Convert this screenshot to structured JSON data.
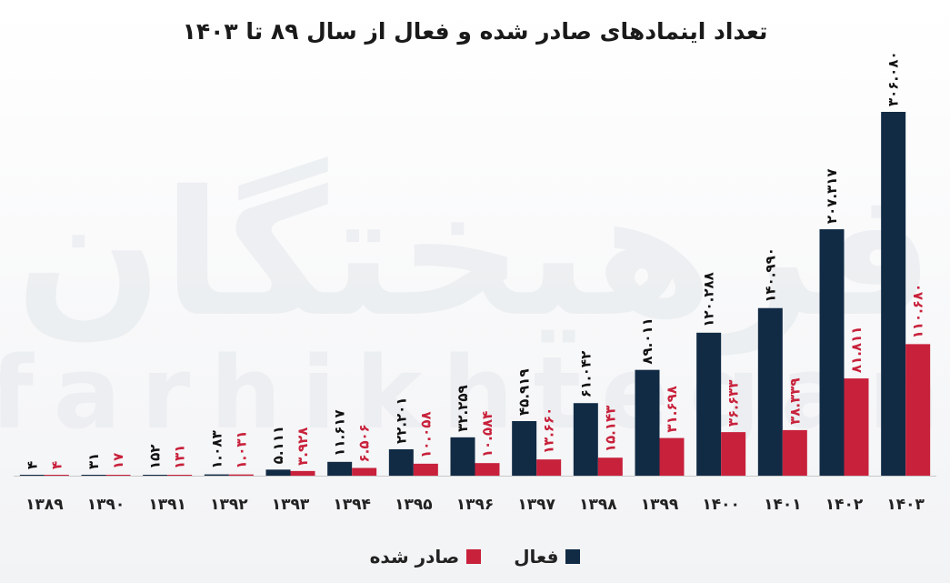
{
  "chart_data": {
    "type": "bar",
    "title": "تعداد اینمادهای صادر شده و فعال از سال ۸۹ تا ۱۴۰۳",
    "categories": [
      "۱۳۸۹",
      "۱۳۹۰",
      "۱۳۹۱",
      "۱۳۹۲",
      "۱۳۹۳",
      "۱۳۹۴",
      "۱۳۹۵",
      "۱۳۹۶",
      "۱۳۹۷",
      "۱۳۹۸",
      "۱۳۹۹",
      "۱۴۰۰",
      "۱۴۰۱",
      "۱۴۰۲",
      "۱۴۰۳"
    ],
    "series": [
      {
        "name": "فعال",
        "color": "#112b45",
        "values": [
          4,
          31,
          152,
          1083,
          5111,
          11617,
          22201,
          32259,
          45919,
          61042,
          89011,
          120288,
          140990,
          207317,
          306080
        ],
        "labels": [
          "۴",
          "۳۱",
          "۱۵۲",
          "۱.۰۸۳",
          "۵.۱۱۱",
          "۱۱.۶۱۷",
          "۲۲.۲۰۱",
          "۳۲.۲۵۹",
          "۴۵.۹۱۹",
          "۶۱.۰۴۲",
          "۸۹.۰۱۱",
          "۱۲۰.۲۸۸",
          "۱۴۰.۹۹۰",
          "۲۰۷.۳۱۷",
          "۳۰۶.۰۸۰"
        ]
      },
      {
        "name": "صادر شده",
        "color": "#c8213b",
        "values": [
          4,
          17,
          131,
          1031,
          3928,
          6506,
          10058,
          10584,
          13660,
          15143,
          31698,
          36633,
          38339,
          81811,
          110680
        ],
        "labels": [
          "۴",
          "۱۷",
          "۱۳۱",
          "۱.۰۳۱",
          "۳.۹۲۸",
          "۶.۵۰۶",
          "۱۰.۰۵۸",
          "۱۰.۵۸۴",
          "۱۳.۶۶۰",
          "۱۵.۱۴۳",
          "۳۱.۶۹۸",
          "۳۶.۶۳۳",
          "۳۸.۳۳۹",
          "۸۱.۸۱۱",
          "۱۱۰.۶۸۰"
        ]
      }
    ],
    "ylim": [
      0,
      306080
    ],
    "grid": false,
    "legend": "bottom",
    "watermark": [
      "فرهیختگان",
      "farhikhtegan"
    ]
  }
}
